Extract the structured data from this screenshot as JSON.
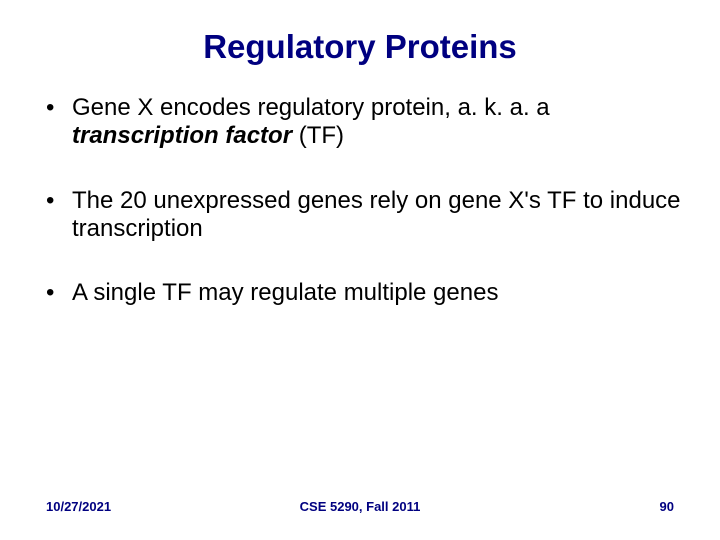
{
  "title": {
    "text": "Regulatory Proteins",
    "color": "#000080",
    "fontsize": 33
  },
  "bullets": {
    "color": "#000000",
    "fontsize": 24,
    "items": [
      {
        "pre": "Gene X encodes regulatory protein, a. k. a. a ",
        "em": "transcription factor",
        "post": " (TF)"
      },
      {
        "pre": "The 20 unexpressed genes rely on gene X's TF to induce transcription",
        "em": "",
        "post": ""
      },
      {
        "pre": "A single TF may regulate multiple genes",
        "em": "",
        "post": ""
      }
    ]
  },
  "footer": {
    "date": "10/27/2021",
    "course": "CSE 5290, Fall 2011",
    "page": "90",
    "color": "#000080",
    "fontsize": 13
  }
}
